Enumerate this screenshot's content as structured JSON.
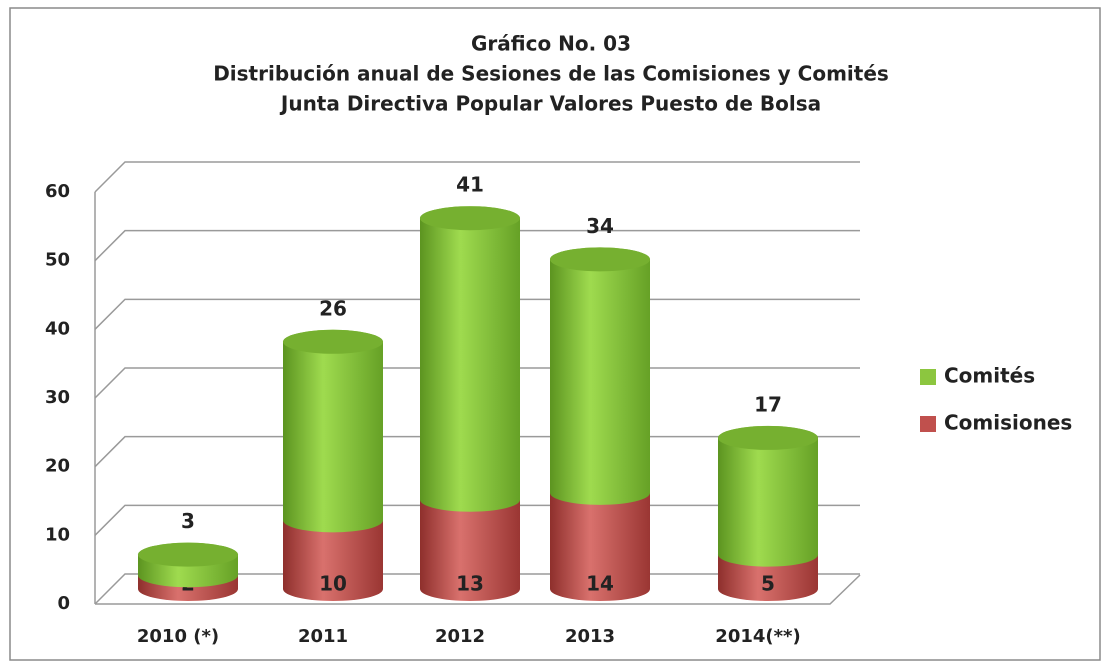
{
  "chart_data": {
    "type": "bar",
    "stacked": true,
    "title": [
      "Gráfico No. 03",
      "Distribución anual de Sesiones de las Comisiones y Comités",
      "Junta Directiva Popular Valores Puesto de Bolsa"
    ],
    "categories": [
      "2010 (*)",
      "2011",
      "2012",
      "2013",
      "2014(**)"
    ],
    "series": [
      {
        "name": "Comisiones",
        "color": "#c0504d",
        "values": [
          2,
          10,
          13,
          14,
          5
        ]
      },
      {
        "name": "Comités",
        "color": "#8cc63f",
        "values": [
          3,
          26,
          41,
          34,
          17
        ]
      }
    ],
    "ylim": [
      0,
      60
    ],
    "yticks": [
      0,
      10,
      20,
      30,
      40,
      50,
      60
    ],
    "grid": true,
    "legend": "right"
  }
}
